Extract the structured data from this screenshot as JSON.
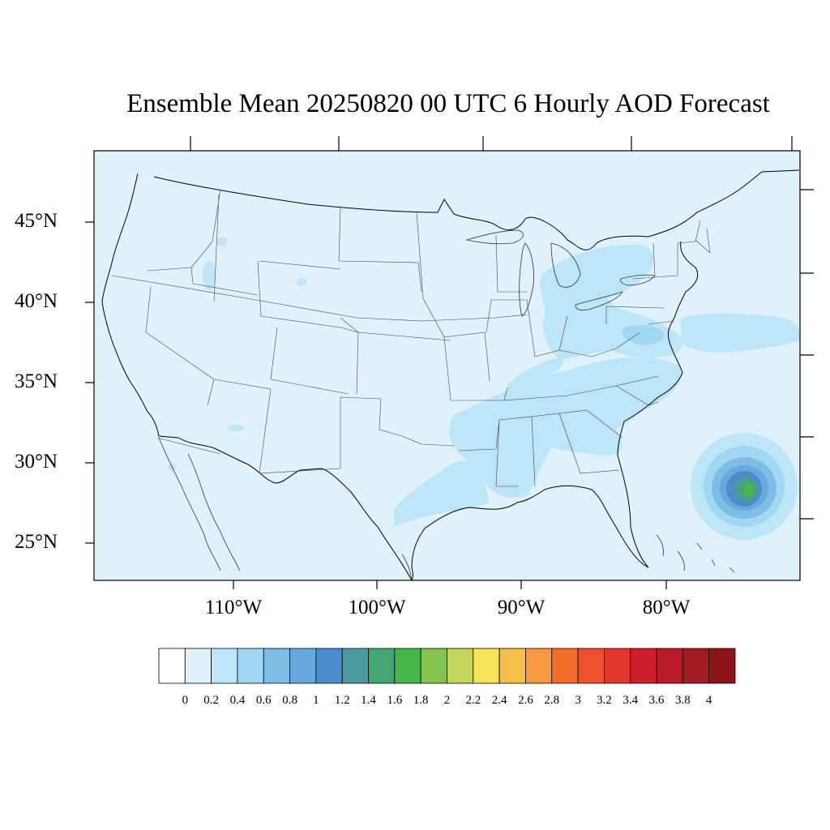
{
  "title": "Ensemble Mean 20250820 00 UTC 6 Hourly AOD Forecast",
  "lat_labels": [
    "45°N",
    "40°N",
    "35°N",
    "30°N",
    "25°N"
  ],
  "lon_labels": [
    "110°W",
    "100°W",
    "90°W",
    "80°W"
  ],
  "colorbar": {
    "labels": [
      "0",
      "0.2",
      "0.4",
      "0.6",
      "0.8",
      "1",
      "1.2",
      "1.4",
      "1.6",
      "1.8",
      "2",
      "2.2",
      "2.4",
      "2.6",
      "2.8",
      "3",
      "3.2",
      "3.4",
      "3.6",
      "3.8",
      "4"
    ],
    "colors": [
      "#ffffff",
      "#dff1fb",
      "#bde5f8",
      "#a0d8f3",
      "#7fbde6",
      "#67a8dd",
      "#4a8ccc",
      "#4a9ba0",
      "#44a675",
      "#47b64a",
      "#85c350",
      "#c4d55b",
      "#f6e45a",
      "#f7bf4a",
      "#f59a3e",
      "#f36d2d",
      "#ed5230",
      "#e0372f",
      "#cf1f2d",
      "#b91b28",
      "#a31a23",
      "#8d1519"
    ]
  },
  "colors": {
    "background_field": "#dff1fb",
    "light_blue": "#bde5f8",
    "mid_blue": "#a0d8f3",
    "plume_blue": "#67a8dd",
    "plume_deep": "#4a8ccc",
    "plume_teal": "#4a9ba0",
    "plume_green": "#47b64a"
  }
}
